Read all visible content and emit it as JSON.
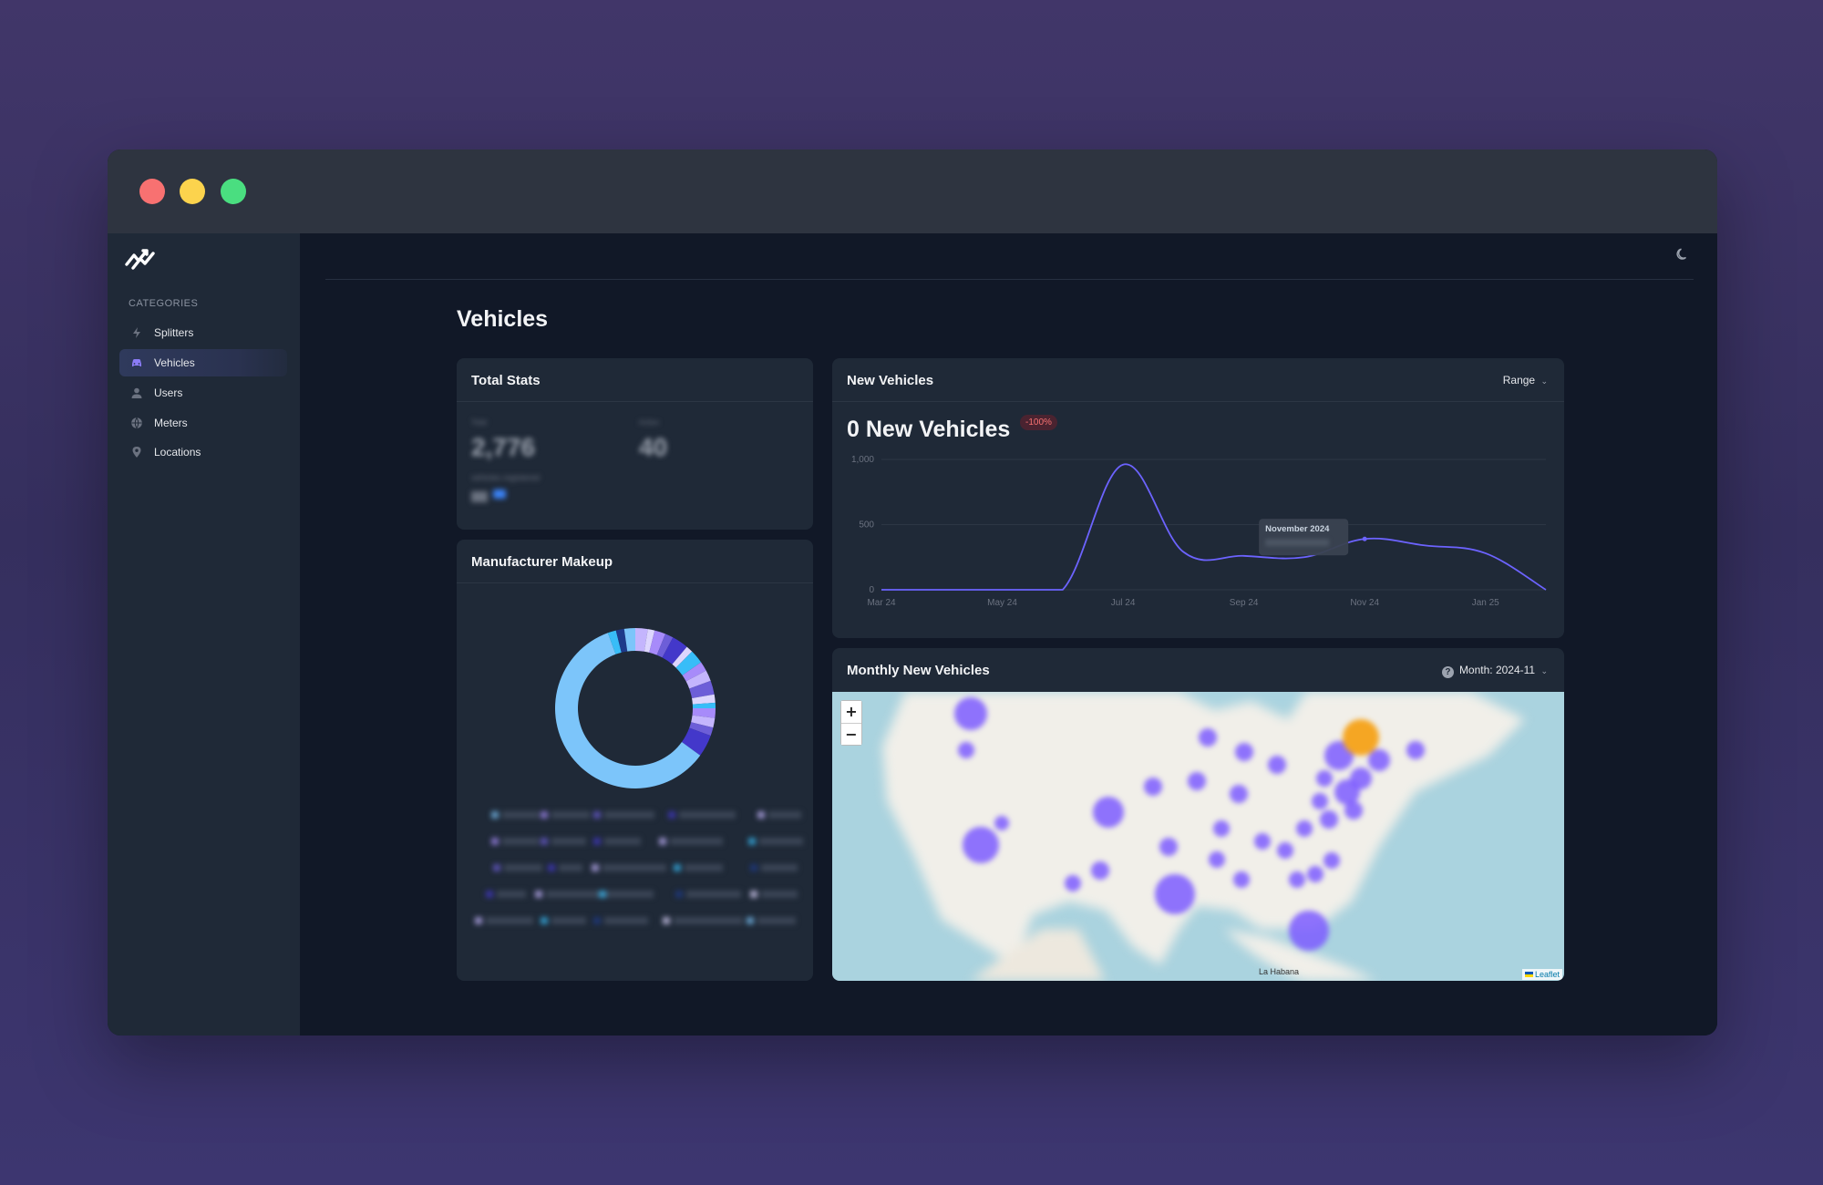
{
  "window": {
    "controls": [
      "close",
      "minimize",
      "maximize"
    ]
  },
  "sidebar": {
    "logo_icon": "zigzag-logo-icon",
    "heading": "CATEGORIES",
    "items": [
      {
        "label": "Splitters",
        "icon": "lightning-icon",
        "active": false
      },
      {
        "label": "Vehicles",
        "icon": "car-icon",
        "active": true
      },
      {
        "label": "Users",
        "icon": "user-icon",
        "active": false
      },
      {
        "label": "Meters",
        "icon": "globe-icon",
        "active": false
      },
      {
        "label": "Locations",
        "icon": "map-pin-icon",
        "active": false
      }
    ]
  },
  "header": {
    "theme_toggle_icon": "moon-icon"
  },
  "page": {
    "title": "Vehicles"
  },
  "total_stats": {
    "title": "Total Stats",
    "stats": [
      {
        "label": "Total",
        "value": "2,776",
        "sub": "vehicles registered"
      },
      {
        "label": "Active",
        "value": "40"
      }
    ],
    "obscured": true
  },
  "manufacturer": {
    "title": "Manufacturer Makeup",
    "legend_obscured": true,
    "colors": [
      "#7cc5fa",
      "#a78bfa",
      "#6d5ed8",
      "#4338ca",
      "#c4b5fd",
      "#38bdf8",
      "#1e3a8a",
      "#ddd6fe"
    ]
  },
  "new_vehicles": {
    "title": "New Vehicles",
    "range_label": "Range",
    "headline": "0 New Vehicles",
    "delta": "-100%",
    "tooltip_title": "November 2024",
    "line_color": "#6c63ff"
  },
  "chart_data": {
    "type": "line",
    "title": "",
    "xlabel": "",
    "ylabel": "",
    "x_ticks": [
      "Mar 24",
      "May 24",
      "Jul 24",
      "Sep 24",
      "Nov 24",
      "Jan 25"
    ],
    "y_ticks": [
      "0",
      "500",
      "1,000"
    ],
    "ylim": [
      0,
      1000
    ],
    "grid": true,
    "series": [
      {
        "x": [
          "2024-03",
          "2024-04",
          "2024-05",
          "2024-06",
          "2024-07",
          "2024-08",
          "2024-09",
          "2024-10",
          "2024-11",
          "2024-12",
          "2025-01",
          "2025-02"
        ],
        "y": [
          0,
          0,
          0,
          0,
          960,
          290,
          260,
          250,
          390,
          340,
          280,
          0
        ]
      }
    ]
  },
  "monthly_map": {
    "title": "Monthly New Vehicles",
    "month_label": "Month: 2024-11",
    "zoom_in": "+",
    "zoom_out": "−",
    "attribution": "Leaflet",
    "city_label": "La Habana",
    "marker_color": "#7c5cff",
    "highlight_color": "#f5a623"
  }
}
